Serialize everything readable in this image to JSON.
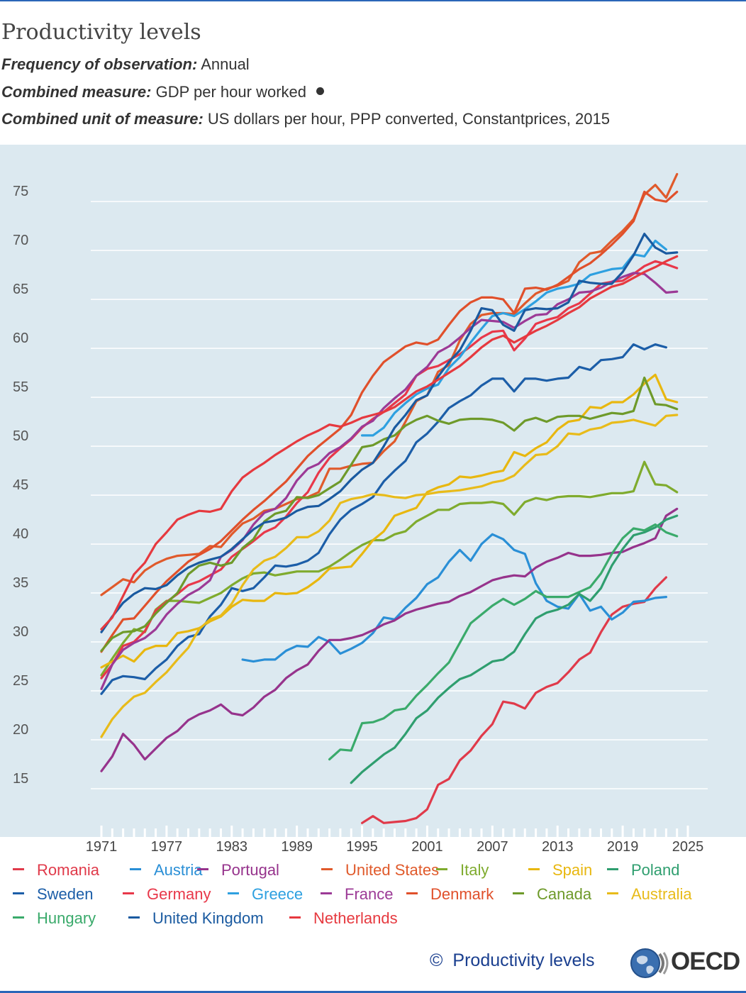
{
  "header": {
    "title": "Productivity levels",
    "frequency_label": "Frequency of observation:",
    "frequency_value": "Annual",
    "measure_label": "Combined measure:",
    "measure_value": "GDP per hour worked",
    "unit_label": "Combined unit of measure:",
    "unit_value": "US dollars per hour, PPP converted, Constantprices, 2015"
  },
  "footer": {
    "copyright_symbol": "©",
    "source_link": "Productivity levels",
    "logo_text": "OECD"
  },
  "chart_data": {
    "type": "line",
    "title": "Productivity levels",
    "xlabel": "",
    "ylabel": "",
    "xlim": [
      1970,
      2025
    ],
    "ylim": [
      10,
      80
    ],
    "yticks": [
      15,
      20,
      25,
      30,
      35,
      40,
      45,
      50,
      55,
      60,
      65,
      70,
      75
    ],
    "xticks": [
      1971,
      1977,
      1983,
      1989,
      1995,
      2001,
      2007,
      2013,
      2019,
      2025
    ],
    "grid": true,
    "legend": "bottom",
    "series": [
      {
        "name": "Romania",
        "color": "#e03a4a",
        "start": 1995,
        "values": [
          11.5,
          12.2,
          11.5,
          11.6,
          11.7,
          12.0,
          12.9,
          15.4,
          16.0,
          17.9,
          18.9,
          20.4,
          21.6,
          23.9,
          23.7,
          23.2,
          24.8,
          25.4,
          25.8,
          26.9,
          28.2,
          28.9,
          31.0,
          32.8,
          33.6,
          33.9,
          34.1,
          35.5,
          36.6
        ]
      },
      {
        "name": "Austria",
        "color": "#2a8fd6",
        "start": 1984,
        "values": [
          28.2,
          28.0,
          28.2,
          28.2,
          29.1,
          29.6,
          29.5,
          30.5,
          30.0,
          28.8,
          29.3,
          29.9,
          30.9,
          32.5,
          32.3,
          33.5,
          34.5,
          35.9,
          36.6,
          38.2,
          39.4,
          38.3,
          40.0,
          41.0,
          40.5,
          39.4,
          39.0,
          36.0,
          34.2,
          33.6,
          33.4,
          34.9,
          33.2,
          33.6,
          32.3,
          33.0,
          34.1,
          34.2,
          34.5,
          34.6
        ]
      },
      {
        "name": "Portugal",
        "color": "#96338c",
        "start": 1971,
        "values": [
          16.8,
          18.3,
          20.6,
          19.5,
          18.0,
          19.1,
          20.2,
          20.9,
          22.0,
          22.6,
          23.0,
          23.6,
          22.7,
          22.5,
          23.3,
          24.4,
          25.1,
          26.3,
          27.1,
          27.7,
          29.1,
          30.2,
          30.2,
          30.4,
          30.7,
          31.2,
          31.8,
          32.2,
          32.9,
          33.3,
          33.6,
          33.9,
          34.1,
          34.7,
          35.1,
          35.7,
          36.3,
          36.6,
          36.8,
          36.7,
          37.6,
          38.2,
          38.6,
          39.1,
          38.8,
          38.8,
          38.9,
          39.1,
          39.2,
          39.7,
          40.1,
          40.6,
          42.9,
          43.6
        ]
      },
      {
        "name": "United States",
        "color": "#e05a2b",
        "start": 1971,
        "values": [
          34.8,
          35.6,
          36.4,
          36.1,
          37.3,
          38.0,
          38.5,
          38.8,
          38.9,
          39.0,
          39.8,
          39.7,
          41.0,
          42.1,
          42.6,
          43.4,
          43.6,
          44.1,
          44.6,
          44.8,
          45.3,
          47.7,
          47.7,
          48.0,
          48.2,
          48.3,
          49.5,
          50.5,
          52.5,
          54.6,
          55.2,
          57.6,
          58.3,
          60.8,
          62.5,
          63.4,
          63.6,
          63.6,
          63.5,
          64.6,
          65.6,
          66.1,
          66.4,
          66.9,
          68.8,
          69.7,
          69.9,
          71.0,
          72.0,
          73.2,
          75.7,
          76.7,
          75.4,
          77.8
        ]
      },
      {
        "name": "Italy",
        "color": "#7fab2e",
        "start": 1971,
        "values": [
          26.6,
          28.3,
          29.9,
          31.3,
          31.0,
          33.3,
          34.2,
          34.2,
          34.1,
          34.0,
          34.5,
          35.0,
          35.8,
          36.5,
          37.0,
          37.1,
          36.8,
          37.0,
          37.2,
          37.2,
          37.2,
          37.7,
          38.4,
          39.2,
          39.9,
          40.4,
          40.4,
          41.0,
          41.3,
          42.3,
          42.9,
          43.5,
          43.5,
          44.1,
          44.2,
          44.2,
          44.3,
          44.1,
          43.0,
          44.3,
          44.7,
          44.5,
          44.8,
          44.9,
          44.9,
          44.8,
          45.0,
          45.2,
          45.2,
          45.4,
          48.4,
          46.1,
          46.0,
          45.3
        ]
      },
      {
        "name": "Spain",
        "color": "#e8b70f",
        "start": 1971,
        "values": [
          27.4,
          28.0,
          28.6,
          28.0,
          29.2,
          29.6,
          29.6,
          30.9,
          31.1,
          31.4,
          32.1,
          32.6,
          33.6,
          34.3,
          34.2,
          34.2,
          35.0,
          34.9,
          35.0,
          35.6,
          36.4,
          37.5,
          37.6,
          37.7,
          39.0,
          40.4,
          41.3,
          42.9,
          43.3,
          43.7,
          45.3,
          45.8,
          46.1,
          46.9,
          46.8,
          47.0,
          47.3,
          47.5,
          49.4,
          49.0,
          49.8,
          50.4,
          51.7,
          52.5,
          52.7,
          54.0,
          53.9,
          54.5,
          54.5,
          55.3,
          56.4,
          57.3,
          54.8,
          54.5
        ]
      },
      {
        "name": "Poland",
        "color": "#2f9e6f",
        "start": 1994,
        "values": [
          15.6,
          16.7,
          17.6,
          18.5,
          19.2,
          20.6,
          22.2,
          23.0,
          24.3,
          25.3,
          26.2,
          26.6,
          27.3,
          28.0,
          28.2,
          29.0,
          30.8,
          32.4,
          33.0,
          33.3,
          33.8,
          34.9,
          34.2,
          35.5,
          37.8,
          39.5,
          40.9,
          41.2,
          41.7,
          42.5,
          42.9
        ]
      },
      {
        "name": "Sweden",
        "color": "#1c5ea8",
        "start": 1971,
        "values": [
          24.7,
          26.1,
          26.5,
          26.4,
          26.2,
          27.3,
          28.2,
          29.6,
          30.5,
          30.8,
          32.6,
          33.8,
          35.5,
          35.2,
          35.5,
          36.6,
          37.8,
          37.7,
          37.9,
          38.3,
          39.1,
          41.0,
          42.5,
          43.5,
          44.1,
          44.8,
          46.4,
          47.5,
          48.5,
          50.4,
          51.3,
          52.5,
          53.9,
          54.6,
          55.2,
          56.2,
          56.9,
          56.9,
          55.6,
          56.9,
          56.9,
          56.7,
          56.9,
          57.0,
          58.1,
          57.8,
          58.8,
          58.9,
          59.1,
          60.4,
          59.9,
          60.4,
          60.1
        ]
      },
      {
        "name": "Germany",
        "color": "#e8384a",
        "start": 1971,
        "values": [
          26.3,
          27.7,
          29.6,
          30.0,
          31.1,
          33.2,
          34.1,
          34.9,
          35.8,
          36.2,
          36.8,
          37.4,
          38.7,
          39.5,
          40.3,
          41.2,
          41.7,
          42.8,
          44.2,
          45.3,
          47.3,
          48.8,
          49.8,
          50.7,
          51.9,
          52.8,
          53.5,
          54.4,
          55.3,
          57.2,
          57.9,
          58.2,
          58.8,
          59.4,
          60.2,
          61.1,
          61.7,
          61.8,
          59.8,
          61.0,
          62.5,
          62.9,
          63.2,
          64.1,
          64.6,
          65.6,
          66.6,
          66.8,
          66.9,
          67.6,
          68.4,
          68.9,
          68.6,
          68.2
        ]
      },
      {
        "name": "Greece",
        "color": "#2ea0e0",
        "start": 1995,
        "values": [
          51.1,
          51.1,
          51.9,
          53.4,
          54.4,
          55.3,
          55.9,
          56.3,
          58.0,
          59.1,
          60.6,
          62.0,
          63.3,
          63.6,
          63.3,
          64.0,
          64.8,
          65.7,
          66.1,
          66.3,
          66.6,
          67.5,
          67.8,
          68.1,
          68.2,
          69.6,
          69.4,
          71.0,
          70.1
        ]
      },
      {
        "name": "France",
        "color": "#9c3a96",
        "start": 1971,
        "values": [
          25.2,
          27.7,
          29.2,
          29.9,
          30.4,
          31.3,
          32.8,
          33.9,
          34.8,
          35.4,
          36.3,
          38.7,
          39.4,
          40.4,
          42.0,
          43.2,
          43.6,
          44.7,
          46.5,
          47.7,
          48.2,
          49.3,
          49.9,
          50.8,
          52.0,
          52.6,
          53.9,
          54.9,
          55.8,
          57.2,
          58.1,
          59.6,
          60.2,
          61.1,
          62.1,
          62.9,
          62.8,
          62.7,
          62.1,
          62.8,
          63.4,
          63.5,
          64.5,
          65.0,
          65.7,
          65.8,
          66.2,
          66.8,
          67.3,
          67.7,
          67.6,
          66.7,
          65.7,
          65.8
        ]
      },
      {
        "name": "Denmark",
        "color": "#e0502b",
        "start": 1971,
        "values": [
          29.0,
          30.7,
          32.3,
          32.4,
          33.7,
          35.0,
          36.2,
          37.2,
          38.2,
          38.9,
          39.5,
          40.3,
          41.4,
          42.5,
          43.5,
          44.4,
          45.4,
          46.4,
          47.7,
          49.0,
          50.0,
          50.9,
          51.8,
          53.2,
          55.5,
          57.2,
          58.6,
          59.4,
          60.2,
          60.6,
          60.4,
          60.9,
          62.4,
          63.8,
          64.7,
          65.2,
          65.2,
          65.0,
          63.6,
          66.1,
          66.2,
          66.0,
          66.5,
          67.3,
          68.1,
          68.7,
          69.6,
          70.6,
          71.7,
          73.0,
          76.0,
          75.2,
          75.0,
          76.0
        ]
      },
      {
        "name": "Canada",
        "color": "#6e9a2a",
        "start": 1971,
        "values": [
          29.1,
          30.4,
          31.0,
          31.1,
          31.6,
          32.9,
          34.0,
          35.0,
          36.9,
          37.8,
          38.1,
          37.8,
          38.1,
          39.6,
          40.5,
          42.3,
          43.1,
          43.4,
          44.8,
          44.7,
          45.0,
          45.7,
          46.4,
          48.1,
          49.9,
          50.1,
          50.7,
          51.1,
          52.1,
          52.7,
          53.1,
          52.6,
          52.3,
          52.7,
          52.8,
          52.8,
          52.7,
          52.4,
          51.6,
          52.6,
          52.9,
          52.5,
          53.0,
          53.1,
          53.1,
          52.8,
          53.1,
          53.4,
          53.3,
          53.6,
          57.0,
          54.3,
          54.2,
          53.8
        ]
      },
      {
        "name": "Australia",
        "color": "#e8bb1a",
        "start": 1971,
        "values": [
          20.3,
          22.1,
          23.4,
          24.4,
          24.8,
          25.9,
          26.9,
          28.2,
          29.4,
          31.3,
          32.3,
          32.7,
          33.9,
          35.8,
          37.4,
          38.3,
          38.7,
          39.6,
          40.7,
          40.7,
          41.3,
          42.4,
          44.2,
          44.6,
          44.8,
          45.1,
          45.0,
          44.8,
          44.7,
          45.0,
          45.1,
          45.3,
          45.4,
          45.5,
          45.7,
          45.9,
          46.3,
          46.5,
          47.0,
          48.1,
          49.1,
          49.2,
          50.0,
          51.3,
          51.2,
          51.7,
          51.9,
          52.4,
          52.5,
          52.7,
          52.4,
          52.1,
          53.1,
          53.2
        ]
      },
      {
        "name": "Hungary",
        "color": "#3aaa6b",
        "start": 1992,
        "values": [
          18.0,
          19.0,
          18.9,
          21.7,
          21.8,
          22.2,
          23.0,
          23.2,
          24.5,
          25.6,
          26.8,
          27.9,
          29.9,
          31.9,
          32.8,
          33.7,
          34.4,
          33.8,
          34.4,
          35.2,
          34.6,
          34.6,
          34.6,
          35.1,
          35.6,
          37.0,
          39.0,
          40.6,
          41.6,
          41.4,
          42.0,
          41.2,
          40.8
        ]
      },
      {
        "name": "United Kingdom",
        "color": "#1a5aa0",
        "start": 1971,
        "values": [
          31.0,
          32.6,
          34.0,
          34.9,
          35.5,
          35.4,
          35.8,
          36.8,
          37.6,
          38.1,
          38.4,
          38.7,
          39.5,
          40.5,
          41.5,
          42.2,
          42.4,
          42.7,
          43.4,
          43.8,
          43.9,
          44.6,
          45.4,
          46.6,
          47.6,
          48.3,
          50.0,
          51.9,
          53.2,
          54.7,
          55.2,
          57.1,
          58.6,
          59.8,
          61.8,
          64.1,
          63.9,
          62.4,
          61.8,
          63.9,
          64.1,
          64.0,
          64.1,
          64.7,
          66.9,
          66.7,
          66.6,
          66.6,
          67.8,
          69.5,
          71.7,
          70.3,
          69.7,
          69.8
        ]
      },
      {
        "name": "Netherlands",
        "color": "#e6393f",
        "start": 1971,
        "values": [
          31.3,
          32.5,
          34.7,
          36.9,
          38.1,
          40.0,
          41.2,
          42.5,
          43.0,
          43.4,
          43.3,
          43.6,
          45.4,
          46.8,
          47.6,
          48.3,
          49.1,
          49.8,
          50.5,
          51.1,
          51.6,
          52.2,
          52.0,
          52.4,
          52.9,
          53.2,
          53.5,
          54.0,
          54.8,
          55.6,
          56.1,
          56.8,
          57.5,
          58.2,
          59.1,
          60.1,
          60.9,
          61.3,
          60.6,
          61.2,
          61.8,
          62.3,
          62.9,
          63.6,
          64.2,
          65.1,
          65.7,
          66.3,
          66.6,
          67.2,
          67.8,
          68.3,
          68.9,
          69.4
        ]
      }
    ]
  }
}
